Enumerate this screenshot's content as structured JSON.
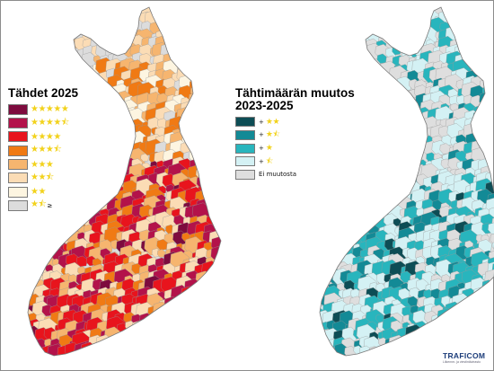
{
  "maps": {
    "left": {
      "title": "Tähdet 2025",
      "legend": [
        {
          "stars": "★★★★★",
          "label": "",
          "color": "#7d0b3e"
        },
        {
          "stars": "★★★★⯪",
          "label": "",
          "color": "#b3124a"
        },
        {
          "stars": "★★★★",
          "label": "",
          "color": "#e8141d"
        },
        {
          "stars": "★★★⯪",
          "label": "",
          "color": "#f07a14"
        },
        {
          "stars": "★★★",
          "label": "",
          "color": "#f6b56f"
        },
        {
          "stars": "★★⯪",
          "label": "",
          "color": "#fbdcb5"
        },
        {
          "stars": "★★",
          "label": "",
          "color": "#fdf5e1"
        },
        {
          "stars": "★⯪",
          "label": "≥",
          "color": "#dcdcdc"
        }
      ]
    },
    "right": {
      "title_line1": "Tähtimäärän muutos",
      "title_line2": "2023-2025",
      "legend": [
        {
          "prefix": "+",
          "stars": "★★",
          "label": "",
          "color": "#0d4d55"
        },
        {
          "prefix": "+",
          "stars": "★⯪",
          "label": "",
          "color": "#138a96"
        },
        {
          "prefix": "+",
          "stars": "★",
          "label": "",
          "color": "#28b5bd"
        },
        {
          "prefix": "+",
          "stars": "⯪",
          "label": "",
          "color": "#d4f1f4"
        },
        {
          "prefix": "",
          "stars": "",
          "label": "Ei muutosta",
          "color": "#dedede"
        }
      ]
    }
  },
  "logo": {
    "brand": "TRAFICOM",
    "sub": "Liikenne- ja viestintävirasto"
  }
}
